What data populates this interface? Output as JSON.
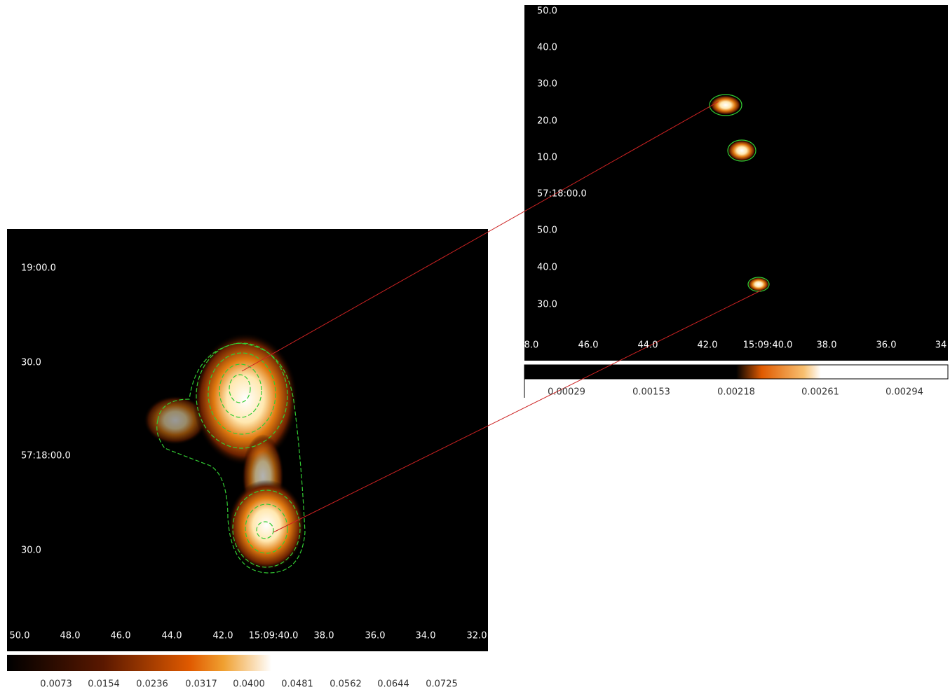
{
  "panels": [
    {
      "y_labels": [
        "19:00.0",
        "30.0",
        "57:18:00.0",
        "30.0"
      ],
      "x_labels": [
        "50.0",
        "48.0",
        "46.0",
        "44.0",
        "42.0",
        "15:09:40.0",
        "38.0",
        "36.0",
        "34.0",
        "32.0"
      ],
      "colorbar_labels": [
        "0.0073",
        "0.0154",
        "0.0236",
        "0.0317",
        "0.0400",
        "0.0481",
        "0.0562",
        "0.0644",
        "0.0725"
      ]
    },
    {
      "y_labels": [
        "50.0",
        "40.0",
        "30.0",
        "20.0",
        "10.0",
        "57:18:00.0",
        "50.0",
        "40.0",
        "30.0"
      ],
      "x_labels": [
        "8.0",
        "46.0",
        "44.0",
        "42.0",
        "15:09:40.0",
        "38.0",
        "36.0",
        "34"
      ],
      "colorbar_labels": [
        "0.00029",
        "0.00153",
        "0.00218",
        "0.00261",
        "0.00294"
      ]
    }
  ]
}
